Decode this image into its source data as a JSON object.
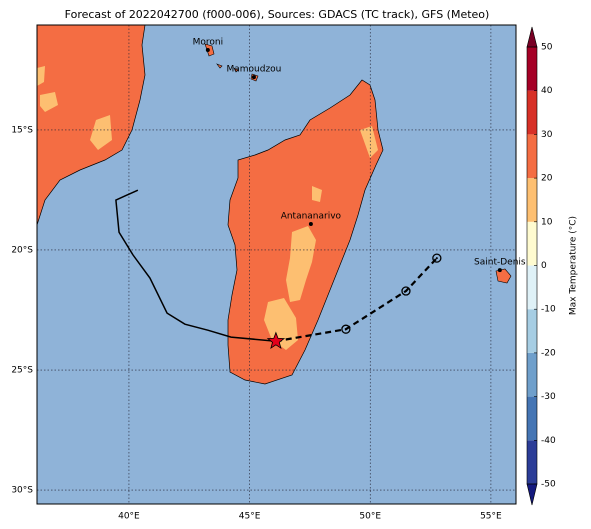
{
  "chart_data": {
    "type": "map",
    "title": "Forecast of 2022042700 (f000-006), Sources: GDACS (TC track), GFS (Meteo)",
    "xlim": [
      36.19,
      56.04
    ],
    "ylim": [
      -30.58,
      -10.63
    ],
    "xticks": [
      {
        "value": 40,
        "label": "40°E"
      },
      {
        "value": 45,
        "label": "45°E"
      },
      {
        "value": 50,
        "label": "50°E"
      },
      {
        "value": 55,
        "label": "55°E"
      }
    ],
    "yticks": [
      {
        "value": -15,
        "label": "15°S"
      },
      {
        "value": -20,
        "label": "20°S"
      },
      {
        "value": -25,
        "label": "25°S"
      },
      {
        "value": -30,
        "label": "30°S"
      }
    ],
    "grid": true,
    "cities": [
      {
        "name": "Moroni",
        "lon": 43.27,
        "lat": -11.67
      },
      {
        "name": "Mamoudzou",
        "lon": 45.18,
        "lat": -12.8
      },
      {
        "name": "Antananarivo",
        "lon": 47.54,
        "lat": -18.92
      },
      {
        "name": "Saint-Denis",
        "lon": 55.37,
        "lat": -20.84
      }
    ],
    "tracks": [
      {
        "style": "solid",
        "color": "#000000",
        "lon": [
          40.37,
          39.46,
          39.59,
          40.17,
          40.87,
          41.58,
          42.32,
          43.27,
          44.23,
          46.09
        ],
        "lat": [
          -17.51,
          -17.92,
          -19.26,
          -20.21,
          -21.17,
          -22.63,
          -23.09,
          -23.34,
          -23.63,
          -23.8
        ]
      },
      {
        "style": "dashed",
        "color": "#000000",
        "lon": [
          46.09,
          48.99,
          51.48,
          52.76
        ],
        "lat": [
          -23.8,
          -23.3,
          -21.71,
          -20.34
        ]
      }
    ],
    "colorbar": {
      "label": "Max Temperature (°C)",
      "ticks": [
        -50,
        -40,
        -30,
        -20,
        -10,
        0,
        10,
        20,
        30,
        40,
        50
      ],
      "colors": [
        "#2b3c97",
        "#4575b4",
        "#6f9fcb",
        "#a6cde3",
        "#dff1f7",
        "#fffbd0",
        "#fdbf71",
        "#f46d43",
        "#d73027",
        "#a50026"
      ],
      "under": "#141a7e",
      "over": "#780025"
    }
  }
}
